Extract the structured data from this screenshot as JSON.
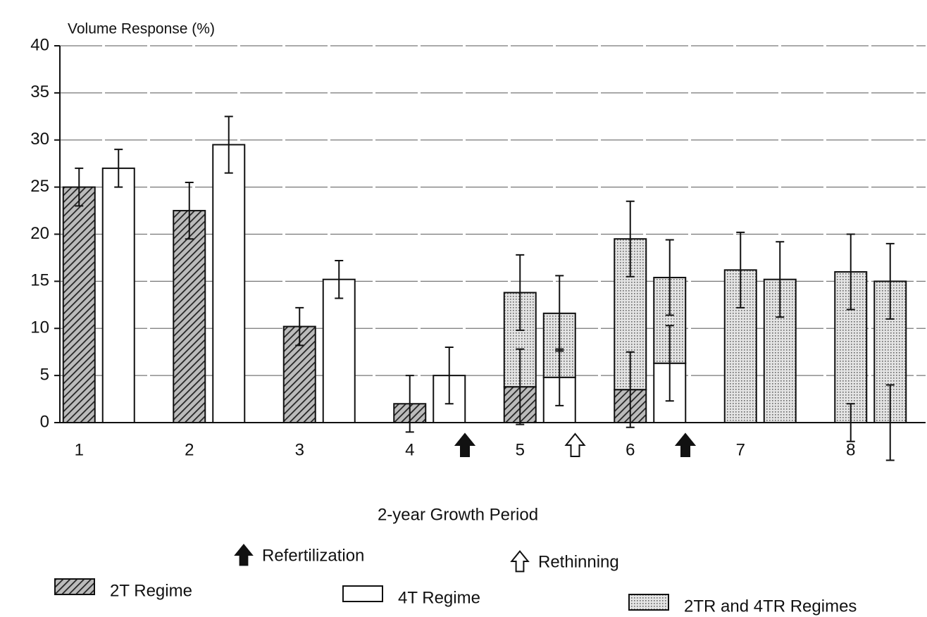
{
  "chart_data": {
    "type": "bar",
    "title": "Volume Response (%)",
    "x_label": "2-year Growth Period",
    "categories": [
      "1",
      "2",
      "3",
      "4",
      "5",
      "6",
      "7",
      "8"
    ],
    "series": [
      {
        "name": "2T Regime",
        "pattern": "hatch",
        "color": "#333333",
        "values": [
          25,
          22.5,
          10.2,
          2,
          3.8,
          3.5,
          null,
          0
        ],
        "errors": [
          2,
          3,
          2,
          3,
          4,
          4,
          null,
          2
        ]
      },
      {
        "name": "4T Regime",
        "pattern": "none",
        "color": "#ffffff",
        "values": [
          27,
          29.5,
          15.2,
          5,
          4.8,
          6.3,
          null,
          0
        ],
        "errors": [
          2,
          3,
          2,
          3,
          3,
          4,
          null,
          4
        ]
      },
      {
        "name": "2TR and 4TR Regimes",
        "pattern": "dots",
        "color": "#cccccc",
        "values_left": [
          null,
          null,
          null,
          null,
          10,
          16,
          16.2,
          16
        ],
        "errors_left": [
          null,
          null,
          null,
          null,
          4,
          4,
          4,
          4
        ],
        "values_right": [
          null,
          null,
          null,
          null,
          6.8,
          9.1,
          15.2,
          15
        ],
        "errors_right": [
          null,
          null,
          null,
          null,
          4,
          4,
          4,
          4
        ]
      }
    ],
    "annotations": [
      {
        "text": "Refertilization",
        "symbol": "filled-arrow",
        "after": [
          "4",
          "6"
        ]
      },
      {
        "text": "Rethinning",
        "symbol": "open-arrow",
        "after": [
          "5"
        ]
      }
    ],
    "ylim": [
      0,
      40
    ],
    "yticks": [
      0,
      5,
      10,
      15,
      20,
      25,
      30,
      35,
      40
    ],
    "grid": true
  }
}
